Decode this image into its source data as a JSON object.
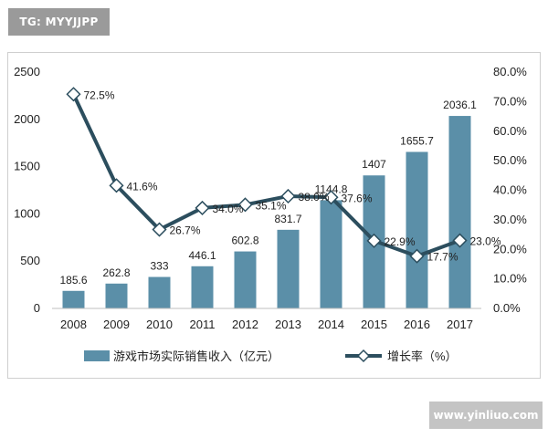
{
  "watermarks": {
    "top": "TG: MYYJJPP",
    "bottom": "www.yinliuo.com"
  },
  "chart_data": {
    "type": "bar",
    "categories": [
      "2008",
      "2009",
      "2010",
      "2011",
      "2012",
      "2013",
      "2014",
      "2015",
      "2016",
      "2017"
    ],
    "series": [
      {
        "name": "游戏市场实际销售收入（亿元）",
        "type": "bar",
        "axis": "left",
        "color": "#5b8fa8",
        "values": [
          185.6,
          262.8,
          333,
          446.1,
          602.8,
          831.7,
          1144.8,
          1407,
          1655.7,
          2036.1
        ],
        "labels": [
          "185.6",
          "262.8",
          "333",
          "446.1",
          "602.8",
          "831.7",
          "1144.8",
          "1407",
          "1655.7",
          "2036.1"
        ]
      },
      {
        "name": "增长率（%）",
        "type": "line",
        "axis": "right",
        "color": "#2c4e5e",
        "marker": "diamond",
        "values": [
          72.5,
          41.6,
          26.7,
          34.0,
          35.1,
          38.0,
          37.6,
          22.9,
          17.7,
          23.0
        ],
        "labels": [
          "72.5%",
          "41.6%",
          "26.7%",
          "34.0%",
          "35.1%",
          "38.0%",
          "37.6%",
          "22.9%",
          "17.7%",
          "23.0%"
        ]
      }
    ],
    "y_left": {
      "ylim": [
        0,
        2500
      ],
      "ticks": [
        0,
        500,
        1000,
        1500,
        2000,
        2500
      ],
      "tick_labels": [
        "0",
        "500",
        "1000",
        "1500",
        "2000",
        "2500"
      ]
    },
    "y_right": {
      "ylim": [
        0,
        80
      ],
      "ticks": [
        0,
        10,
        20,
        30,
        40,
        50,
        60,
        70,
        80
      ],
      "tick_labels": [
        "0.0%",
        "10.0%",
        "20.0%",
        "30.0%",
        "40.0%",
        "50.0%",
        "60.0%",
        "70.0%",
        "80.0%"
      ]
    },
    "grid": false,
    "legend": "bottom"
  }
}
